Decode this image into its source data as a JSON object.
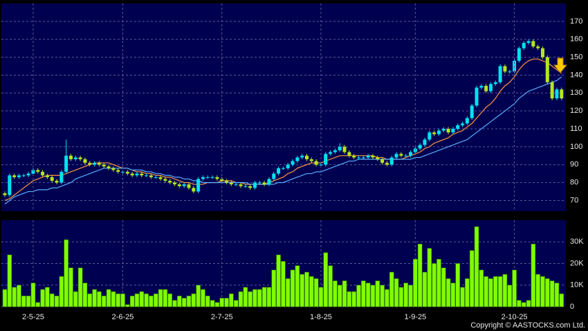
{
  "chart_data": [
    {
      "type": "candlestick",
      "up_color": "#00e1f0",
      "down_color": "#b4e61e",
      "ylim": [
        64,
        180
      ],
      "yticks": [
        70,
        80,
        90,
        100,
        110,
        120,
        130,
        140,
        150,
        160,
        170
      ],
      "grid": true,
      "open": [
        74,
        73,
        84,
        83,
        84,
        84,
        85,
        87,
        86,
        84,
        83,
        81,
        80,
        86,
        95,
        93,
        94,
        93,
        91,
        90,
        91,
        90,
        89,
        88,
        87,
        86,
        86,
        85,
        84,
        85,
        84,
        84,
        83,
        83,
        82,
        81,
        80,
        79,
        78,
        79,
        77,
        75,
        82,
        83,
        83,
        83,
        82,
        81,
        80,
        79,
        79,
        78,
        78,
        77,
        80,
        80,
        79,
        82,
        85,
        88,
        88,
        90,
        92,
        94,
        95,
        93,
        92,
        90,
        90,
        96,
        97,
        98,
        100,
        97,
        95,
        94,
        94,
        94,
        95,
        94,
        93,
        91,
        90,
        94,
        96,
        95,
        95,
        97,
        99,
        101,
        104,
        108,
        107,
        109,
        110,
        108,
        110,
        112,
        113,
        116,
        123,
        133,
        134,
        131,
        135,
        136,
        145,
        142,
        142,
        148,
        155,
        158,
        159,
        156,
        155,
        150,
        136,
        127,
        132
      ],
      "high": [
        75,
        85,
        85,
        85,
        85,
        86,
        88,
        88,
        87,
        85,
        84,
        82,
        87,
        104,
        96,
        95,
        95,
        94,
        92,
        92,
        92,
        91,
        90,
        89,
        88,
        87,
        87,
        86,
        86,
        86,
        85,
        85,
        84,
        84,
        83,
        82,
        81,
        80,
        80,
        80,
        78,
        83,
        84,
        84,
        84,
        84,
        83,
        82,
        81,
        80,
        80,
        79,
        79,
        81,
        81,
        81,
        83,
        86,
        89,
        89,
        91,
        93,
        95,
        96,
        96,
        94,
        93,
        91,
        97,
        98,
        99,
        102,
        101,
        98,
        96,
        95,
        95,
        96,
        96,
        95,
        94,
        92,
        95,
        97,
        97,
        96,
        98,
        100,
        102,
        105,
        109,
        109,
        110,
        111,
        111,
        111,
        113,
        114,
        117,
        124,
        134,
        135,
        135,
        136,
        137,
        146,
        146,
        143,
        149,
        156,
        159,
        160,
        160,
        157,
        156,
        151,
        137,
        133,
        133
      ],
      "low": [
        72,
        72,
        82,
        82,
        83,
        83,
        84,
        85,
        83,
        82,
        80,
        79,
        79,
        85,
        92,
        92,
        92,
        90,
        89,
        89,
        89,
        88,
        87,
        86,
        85,
        85,
        84,
        83,
        83,
        83,
        83,
        82,
        82,
        81,
        80,
        79,
        78,
        77,
        77,
        76,
        74,
        74,
        81,
        82,
        82,
        81,
        80,
        79,
        78,
        78,
        77,
        77,
        76,
        76,
        79,
        78,
        78,
        81,
        84,
        87,
        87,
        89,
        91,
        93,
        92,
        91,
        89,
        89,
        89,
        95,
        96,
        97,
        96,
        94,
        93,
        93,
        93,
        93,
        93,
        92,
        90,
        89,
        89,
        93,
        94,
        94,
        94,
        96,
        98,
        100,
        103,
        106,
        106,
        108,
        107,
        107,
        109,
        111,
        112,
        115,
        122,
        132,
        130,
        130,
        134,
        135,
        141,
        141,
        141,
        147,
        154,
        157,
        155,
        154,
        149,
        135,
        126,
        126,
        126
      ],
      "close": [
        73,
        84,
        83,
        84,
        84,
        85,
        87,
        86,
        84,
        83,
        81,
        80,
        86,
        95,
        93,
        94,
        93,
        91,
        90,
        91,
        90,
        89,
        88,
        87,
        86,
        86,
        85,
        84,
        85,
        84,
        84,
        83,
        83,
        82,
        81,
        80,
        79,
        78,
        79,
        77,
        75,
        82,
        83,
        83,
        83,
        82,
        81,
        80,
        79,
        79,
        78,
        78,
        77,
        80,
        80,
        79,
        82,
        85,
        88,
        88,
        90,
        92,
        94,
        95,
        93,
        92,
        90,
        90,
        96,
        97,
        98,
        100,
        97,
        95,
        94,
        94,
        94,
        95,
        94,
        93,
        91,
        90,
        94,
        96,
        95,
        95,
        97,
        99,
        101,
        104,
        108,
        107,
        109,
        110,
        108,
        110,
        112,
        113,
        116,
        123,
        133,
        134,
        131,
        135,
        136,
        145,
        142,
        142,
        148,
        155,
        158,
        159,
        156,
        155,
        150,
        136,
        127,
        132,
        127
      ],
      "series": [
        {
          "color": "#ff9a3c",
          "values": [
            70,
            71,
            73,
            75,
            77,
            79,
            81,
            82,
            83,
            84,
            84,
            84,
            84,
            85,
            86,
            87,
            88,
            89,
            90,
            91,
            91,
            91,
            91,
            90,
            89,
            88,
            88,
            87,
            86,
            86,
            85,
            85,
            84,
            84,
            83,
            83,
            82,
            81,
            80,
            80,
            79,
            79,
            79,
            80,
            80,
            80,
            81,
            81,
            81,
            80,
            80,
            79,
            79,
            79,
            79,
            79,
            80,
            81,
            82,
            83,
            85,
            86,
            88,
            89,
            90,
            91,
            91,
            91,
            92,
            93,
            94,
            95,
            95,
            95,
            95,
            95,
            95,
            95,
            95,
            94,
            94,
            93,
            93,
            93,
            93,
            94,
            95,
            96,
            97,
            99,
            100,
            102,
            103,
            104,
            105,
            107,
            108,
            109,
            111,
            113,
            116,
            119,
            122,
            124,
            127,
            131,
            134,
            136,
            139,
            143,
            146,
            148,
            149,
            149,
            148,
            147,
            145,
            143,
            141
          ]
        },
        {
          "color": "#5aaeff",
          "values": [
            68,
            70,
            72,
            73,
            74,
            75,
            75,
            76,
            76,
            76,
            77,
            77,
            78,
            79,
            80,
            82,
            83,
            84,
            85,
            86,
            87,
            88,
            88,
            88,
            88,
            88,
            88,
            87,
            87,
            87,
            86,
            86,
            85,
            85,
            84,
            84,
            83,
            83,
            82,
            82,
            81,
            81,
            80,
            80,
            80,
            80,
            80,
            80,
            80,
            80,
            80,
            80,
            79,
            79,
            79,
            79,
            79,
            79,
            80,
            80,
            81,
            82,
            83,
            84,
            85,
            85,
            86,
            86,
            87,
            88,
            89,
            90,
            91,
            92,
            92,
            93,
            93,
            93,
            93,
            93,
            93,
            93,
            93,
            93,
            93,
            93,
            93,
            94,
            94,
            95,
            96,
            97,
            98,
            99,
            100,
            101,
            102,
            103,
            104,
            106,
            108,
            110,
            112,
            114,
            116,
            118,
            120,
            122,
            124,
            127,
            129,
            131,
            132,
            133,
            134,
            135,
            136,
            137,
            139
          ]
        }
      ]
    },
    {
      "type": "bar",
      "color": "#80ff00",
      "ylim": [
        0,
        40000
      ],
      "yticks": [
        0,
        {
          "value": 10000,
          "label": "10K"
        },
        {
          "value": 20000,
          "label": "20K"
        },
        {
          "value": 30000,
          "label": "30K"
        }
      ],
      "grid": true,
      "categories": [
        null,
        null,
        null,
        null,
        null,
        null,
        "2-5-25",
        null,
        null,
        null,
        null,
        null,
        null,
        null,
        null,
        null,
        null,
        null,
        null,
        null,
        null,
        null,
        null,
        null,
        null,
        "2-6-25",
        null,
        null,
        null,
        null,
        null,
        null,
        null,
        null,
        null,
        null,
        null,
        null,
        null,
        null,
        null,
        null,
        null,
        null,
        null,
        null,
        "2-7-25",
        null,
        null,
        null,
        null,
        null,
        null,
        null,
        null,
        null,
        null,
        null,
        null,
        null,
        null,
        null,
        null,
        null,
        null,
        null,
        null,
        "1-8-25",
        null,
        null,
        null,
        null,
        null,
        null,
        null,
        null,
        null,
        null,
        null,
        null,
        null,
        null,
        null,
        null,
        null,
        null,
        null,
        "1-9-25",
        null,
        null,
        null,
        null,
        null,
        null,
        null,
        null,
        null,
        null,
        null,
        null,
        null,
        null,
        null,
        null,
        null,
        null,
        null,
        null,
        "2-10-25",
        null,
        null,
        null,
        null,
        null,
        null,
        null,
        null,
        null,
        null
      ],
      "values": [
        8000,
        24000,
        9000,
        10000,
        5000,
        5000,
        11000,
        2000,
        8000,
        9000,
        6000,
        5000,
        14000,
        31000,
        18000,
        7000,
        18000,
        11000,
        6000,
        8000,
        7000,
        5000,
        8000,
        7000,
        6000,
        6000,
        1000,
        5000,
        6000,
        7000,
        6000,
        5000,
        6000,
        8000,
        8000,
        6000,
        3000,
        5000,
        4000,
        5000,
        6000,
        10000,
        8000,
        5000,
        3000,
        2000,
        4000,
        4000,
        6000,
        3000,
        7000,
        9000,
        7000,
        8000,
        8000,
        9000,
        9000,
        17000,
        24000,
        21000,
        13000,
        17000,
        19000,
        15000,
        16000,
        14000,
        13000,
        9000,
        25000,
        19000,
        12000,
        10000,
        12000,
        7000,
        7000,
        10000,
        12000,
        11000,
        10000,
        12000,
        10000,
        8000,
        16000,
        13000,
        9000,
        11000,
        10000,
        22000,
        29000,
        16000,
        27000,
        20000,
        22000,
        18000,
        13000,
        11000,
        20000,
        9000,
        13000,
        26000,
        37000,
        17000,
        14000,
        13000,
        14000,
        14000,
        15000,
        10000,
        17000,
        3000,
        2000,
        3000,
        29000,
        15000,
        14000,
        13000,
        12000,
        11000,
        6000
      ]
    }
  ],
  "copyright": "Copyright © AASTOCKS.com Ltd."
}
